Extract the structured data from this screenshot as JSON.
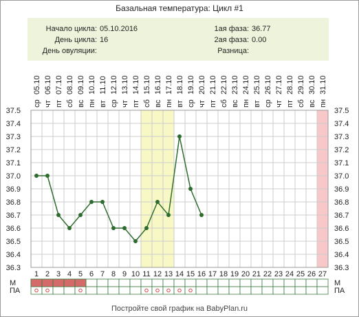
{
  "chart_data": {
    "type": "line",
    "title": "Базальная температура: Цикл #1",
    "categories": [
      1,
      2,
      3,
      4,
      5,
      6,
      7,
      8,
      9,
      10,
      11,
      12,
      13,
      14,
      15,
      16,
      17,
      18,
      19,
      20,
      21,
      22,
      23,
      24,
      25,
      26,
      27
    ],
    "dates": [
      "05.10",
      "06.10",
      "07.10",
      "08.10",
      "09.10",
      "10.10",
      "11.10",
      "12.10",
      "13.10",
      "14.10",
      "15.10",
      "16.10",
      "17.10",
      "18.10",
      "19.10",
      "20.10",
      "21.10",
      "22.10",
      "23.10",
      "24.10",
      "25.10",
      "26.10",
      "27.10",
      "28.10",
      "29.10",
      "30.10",
      "31.10"
    ],
    "weekdays": [
      "ср",
      "чт",
      "пт",
      "сб",
      "вс",
      "пн",
      "вт",
      "ср",
      "чт",
      "пт",
      "сб",
      "вс",
      "пн",
      "вт",
      "ср",
      "чт",
      "пт",
      "сб",
      "вс",
      "пн",
      "вт",
      "ср",
      "чт",
      "пт",
      "сб",
      "вс",
      "пн"
    ],
    "values": [
      37.0,
      37.0,
      36.7,
      36.6,
      36.7,
      36.8,
      36.8,
      36.6,
      36.6,
      36.5,
      36.6,
      36.8,
      36.7,
      37.3,
      36.9,
      36.7,
      null,
      null,
      null,
      null,
      null,
      null,
      null,
      null,
      null,
      null,
      null
    ],
    "color": "#2e6b2e",
    "ylim": [
      36.3,
      37.5
    ],
    "yticks": [
      36.3,
      36.4,
      36.5,
      36.6,
      36.7,
      36.8,
      36.9,
      {
        "value": 37.0,
        "label": "37.0"
      },
      37.1,
      37.2,
      37.3,
      37.4,
      37.5
    ],
    "grid": true,
    "fertile_window": [
      11,
      13
    ],
    "fertile_color": "#f8f8c4",
    "expected_period": [
      27
    ],
    "period_color": "#f8c8c8",
    "row_labels": [
      "М",
      "ПА"
    ],
    "menstruation_days": [
      1,
      2,
      3,
      4,
      5
    ],
    "menstruation_color": "#d46a6a",
    "intercourse_days": [
      1,
      2,
      5,
      11,
      12,
      13,
      14,
      15
    ]
  },
  "info": {
    "left": [
      {
        "label": "Начало цикла:",
        "value": "05.10.2016"
      },
      {
        "label": "День цикла:",
        "value": 16
      },
      {
        "label": "День овуляции:",
        "value": ""
      }
    ],
    "right": [
      {
        "label": "1ая фаза:",
        "value": 36.77
      },
      {
        "label": "2ая фаза:",
        "value": "0.00"
      },
      {
        "label": "Разница:",
        "value": ""
      }
    ]
  },
  "footer": "Постройте свой график на BabyPlan.ru"
}
